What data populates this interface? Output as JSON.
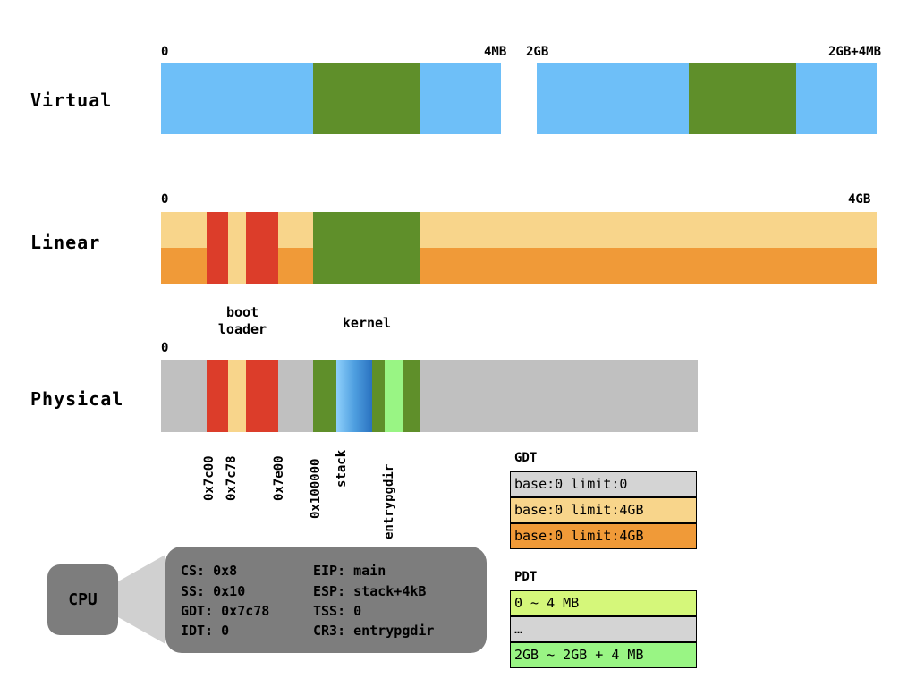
{
  "virtual": {
    "label": "Virtual",
    "ticks": [
      "0",
      "4MB",
      "2GB",
      "2GB+4MB"
    ]
  },
  "linear": {
    "label": "Linear",
    "ticks": [
      "0",
      "4GB"
    ]
  },
  "physical": {
    "label": "Physical",
    "tick_start": "0",
    "captions": {
      "boot_loader": "boot\nloader",
      "kernel": "kernel"
    },
    "addresses": [
      "0x7c00",
      "0x7c78",
      "0x7e00",
      "0x100000",
      "stack",
      "entrypgdir"
    ]
  },
  "gdt": {
    "title": "GDT",
    "rows": [
      "base:0 limit:0",
      "base:0 limit:4GB",
      "base:0 limit:4GB"
    ]
  },
  "pdt": {
    "title": "PDT",
    "rows": [
      "0 ~ 4 MB",
      "…",
      "2GB ~ 2GB + 4 MB"
    ]
  },
  "cpu": {
    "label": "CPU",
    "registers_left": [
      "CS: 0x8",
      "SS: 0x10",
      "GDT: 0x7c78",
      "IDT: 0"
    ],
    "registers_right": [
      "EIP: main",
      "ESP: stack+4kB",
      "TSS: 0",
      "CR3: entrypgdir"
    ]
  },
  "colors": {
    "blue": "#6ebff8",
    "green": "#5f8f2a",
    "light_orange": "#f8d58b",
    "orange": "#f09a38",
    "red": "#dc3d2a",
    "gray": "#c0c0c0",
    "light_green": "#99f584",
    "yellow_green": "#d5f77a",
    "dark_gray": "#7d7d7d"
  }
}
